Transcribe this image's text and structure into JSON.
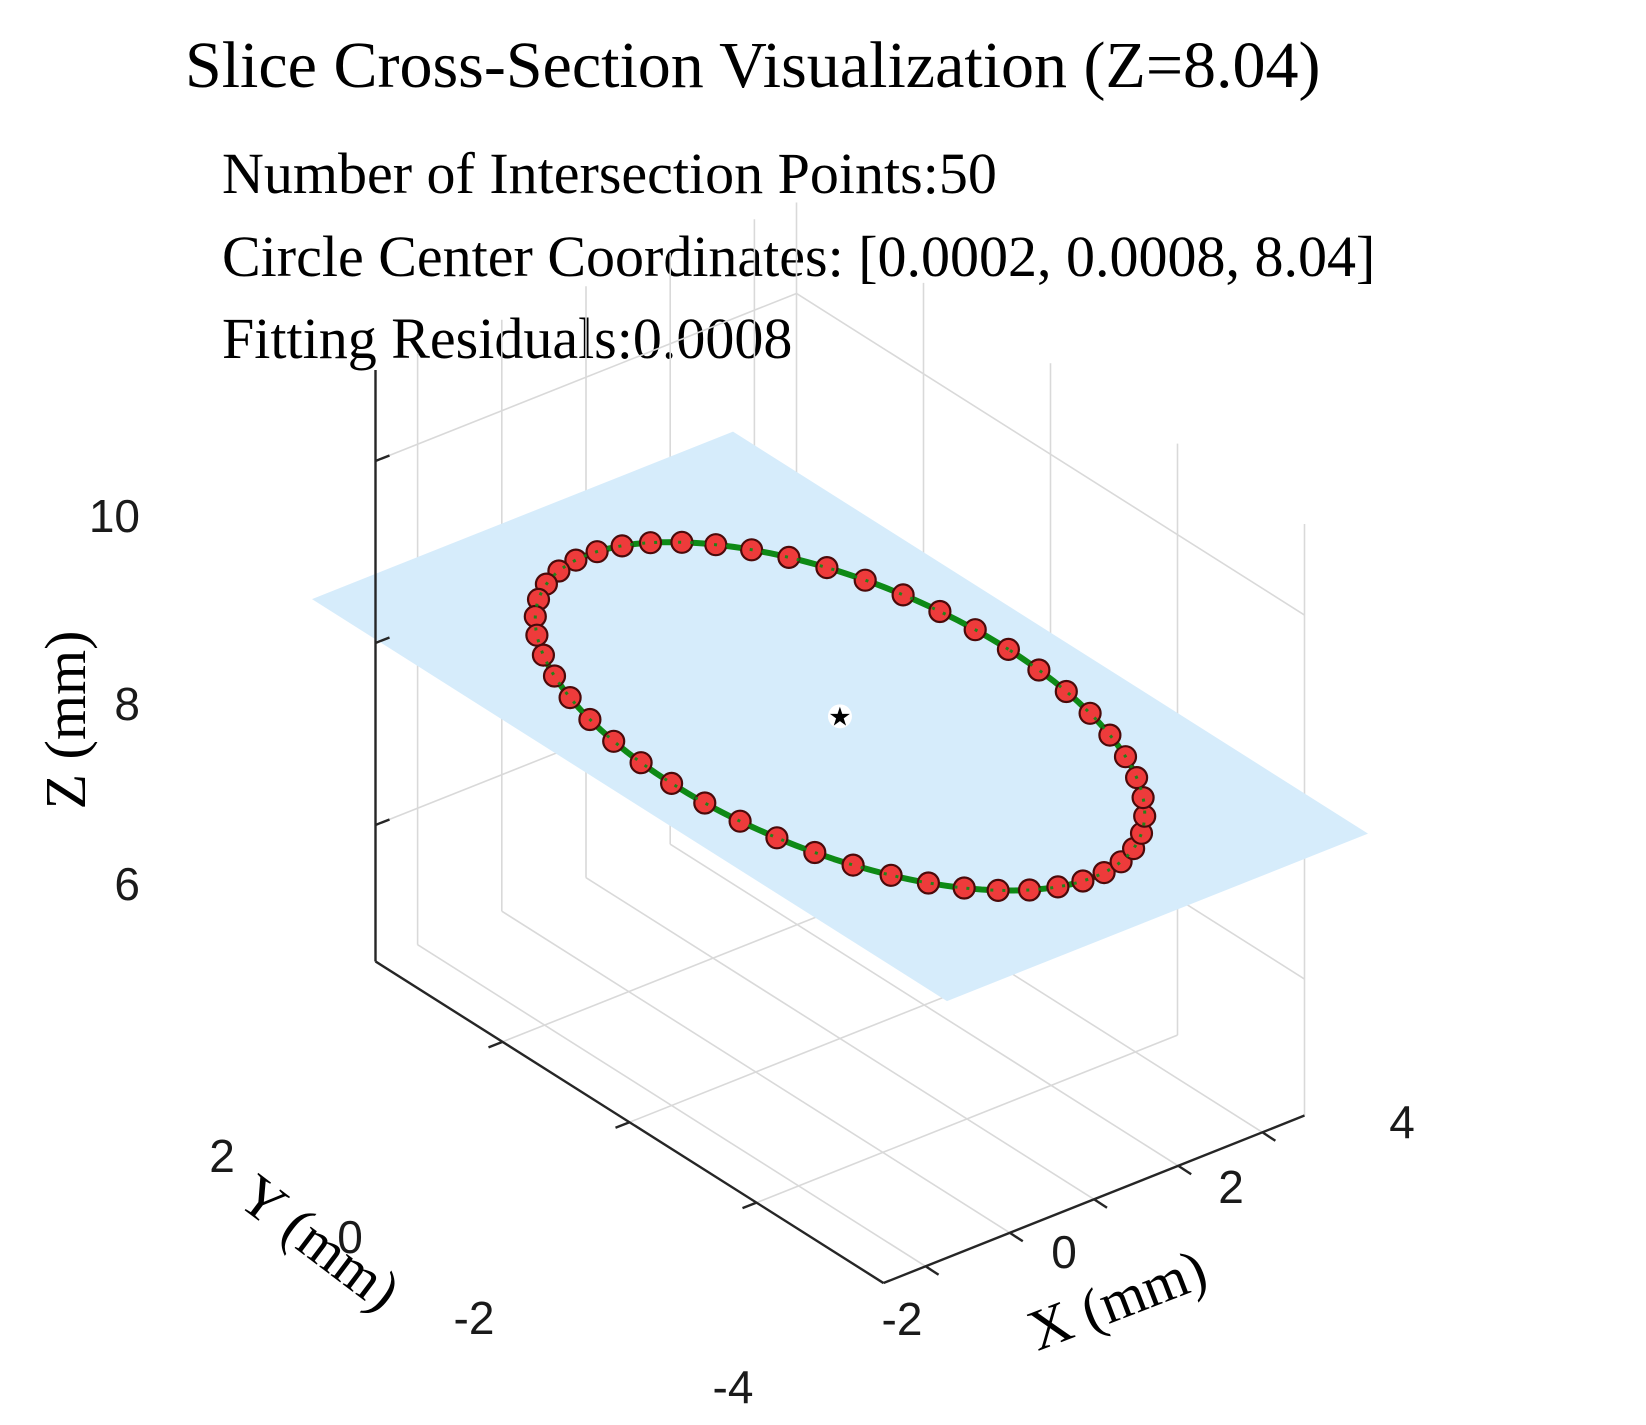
{
  "chart_data": {
    "type": "scatter3d",
    "title": "Slice Cross-Section Visualization (Z=8.04)",
    "info_lines": [
      "Number of Intersection Points:50",
      "Circle Center Coordinates: [0.0002, 0.0008, 8.04]",
      "Fitting Residuals:0.0008"
    ],
    "xlabel": "X (mm)",
    "ylabel": "Y (mm)",
    "zlabel": "Z (mm)",
    "xlim": [
      -5,
      5
    ],
    "ylim": [
      -4,
      4
    ],
    "zlim": [
      4.5,
      11
    ],
    "xticks": [
      -4,
      -2,
      0,
      2,
      4
    ],
    "xtick_labels": [
      "-4",
      "-2",
      "0",
      "2",
      "4"
    ],
    "yticks": [
      -2,
      0,
      2
    ],
    "ytick_labels": [
      "-2",
      "0",
      "2"
    ],
    "zticks": [
      6,
      8,
      10
    ],
    "ztick_labels": [
      "6",
      "8",
      "10"
    ],
    "grid": true,
    "slice_plane": {
      "z": 8.04,
      "x_range": [
        -5,
        5
      ],
      "y_range": [
        -5,
        5
      ],
      "color": "#d6ecfb"
    },
    "fitted_circle": {
      "center": [
        0.0002,
        0.0008,
        8.04
      ],
      "radius": 4.0,
      "color": "#0e8a16"
    },
    "intersection_points": {
      "count": 50,
      "radius": 4.0,
      "z": 8.04,
      "color": "#ee3b3b",
      "edge_color": "#4a0a0a"
    },
    "center_marker": {
      "x": 0.0002,
      "y": 0.0008,
      "z": 8.04,
      "symbol": "★"
    }
  }
}
